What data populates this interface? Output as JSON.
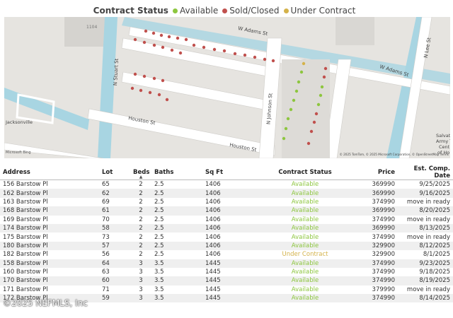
{
  "legend": {
    "title": "Contract Status",
    "items": [
      {
        "label": "Available",
        "color": "#8dc63f"
      },
      {
        "label": "Sold/Closed",
        "color": "#c0504d"
      },
      {
        "label": "Under Contract",
        "color": "#d4b24a"
      }
    ]
  },
  "map": {
    "labels": [
      "W Adams St",
      "W Adams St",
      "N Stuart St",
      "N Johnson St",
      "Houston St",
      "Houston St",
      "N Lee St",
      "Jacksonville",
      "1104",
      "Salvat",
      "Army To",
      "Cent",
      "of Ho"
    ],
    "attribution": "© 2025 TomTom, © 2025 Microsoft Corporation, © OpenStreetMap  Terms",
    "logo": "Microsoft Bing"
  },
  "table": {
    "headers": [
      "Address",
      "Lot",
      "Beds",
      "Baths",
      "Sq Ft",
      "Contract Status",
      "Price",
      "Est. Comp. Date"
    ],
    "rows": [
      [
        "156 Barstow Pl",
        "65",
        "2",
        "2.5",
        "1406",
        "Available",
        "369990",
        "9/25/2025"
      ],
      [
        "162 Barstow Pl",
        "62",
        "2",
        "2.5",
        "1406",
        "Available",
        "369990",
        "9/16/2025"
      ],
      [
        "163 Barstow Pl",
        "69",
        "2",
        "2.5",
        "1406",
        "Available",
        "374990",
        "move in ready"
      ],
      [
        "168 Barstow Pl",
        "61",
        "2",
        "2.5",
        "1406",
        "Available",
        "369990",
        "8/20/2025"
      ],
      [
        "169 Barstow Pl",
        "70",
        "2",
        "2.5",
        "1406",
        "Available",
        "374990",
        "move in ready"
      ],
      [
        "174 Barstow Pl",
        "58",
        "2",
        "2.5",
        "1406",
        "Available",
        "369990",
        "8/13/2025"
      ],
      [
        "175 Barstow Pl",
        "73",
        "2",
        "2.5",
        "1406",
        "Available",
        "374990",
        "move in ready"
      ],
      [
        "180 Barstow Pl",
        "57",
        "2",
        "2.5",
        "1406",
        "Available",
        "329900",
        "8/12/2025"
      ],
      [
        "182 Barstow Pl",
        "56",
        "2",
        "2.5",
        "1406",
        "Under Contract",
        "329900",
        "8/1/2025"
      ],
      [
        "158 Barstow Pl",
        "64",
        "3",
        "3.5",
        "1445",
        "Available",
        "374990",
        "9/23/2025"
      ],
      [
        "160 Barstow Pl",
        "63",
        "3",
        "3.5",
        "1445",
        "Available",
        "374990",
        "9/18/2025"
      ],
      [
        "170 Barstow Pl",
        "60",
        "3",
        "3.5",
        "1445",
        "Available",
        "374990",
        "8/19/2025"
      ],
      [
        "171 Barstow Pl",
        "71",
        "3",
        "3.5",
        "1445",
        "Available",
        "379990",
        "move in ready"
      ],
      [
        "172 Barstow Pl",
        "59",
        "3",
        "3.5",
        "1445",
        "Available",
        "374990",
        "8/14/2025"
      ]
    ]
  },
  "watermark": "©2025 NEFMLS, Inc"
}
